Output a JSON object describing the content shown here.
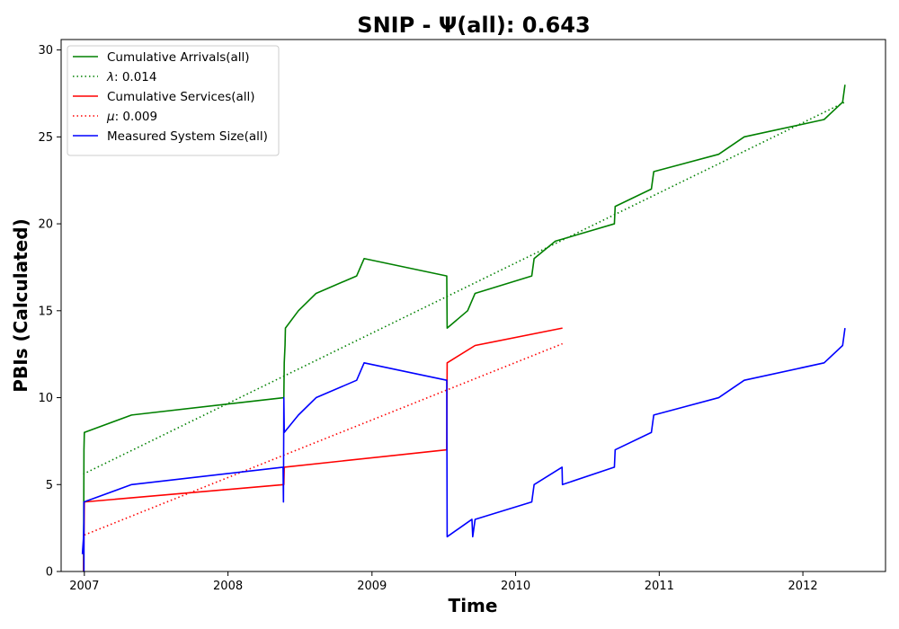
{
  "chart_data": {
    "type": "line",
    "title": "SNIP -  Ψ(all): 0.643",
    "xlabel": "Time",
    "ylabel": "PBIs (Calculated)",
    "x_is_date": true,
    "xlim": [
      "2006-11-03",
      "2012-07-29"
    ],
    "ylim": [
      0,
      30.6
    ],
    "x_ticks": [
      {
        "value": "2007-01-01",
        "label": "2007"
      },
      {
        "value": "2008-01-01",
        "label": "2008"
      },
      {
        "value": "2009-01-01",
        "label": "2009"
      },
      {
        "value": "2010-01-01",
        "label": "2010"
      },
      {
        "value": "2011-01-01",
        "label": "2011"
      },
      {
        "value": "2012-01-01",
        "label": "2012"
      }
    ],
    "y_ticks": [
      0,
      5,
      10,
      15,
      20,
      25,
      30
    ],
    "grid": false,
    "legend_position": "top-left",
    "series": [
      {
        "name": "Cumulative Arrivals(all)",
        "name_prefix": "",
        "color": "#008000",
        "style": "solid",
        "points": [
          [
            "2006-12-30",
            0
          ],
          [
            "2006-12-31",
            7
          ],
          [
            "2007-01-01",
            8
          ],
          [
            "2007-05-01",
            9
          ],
          [
            "2008-05-22",
            10
          ],
          [
            "2008-05-23",
            12
          ],
          [
            "2008-05-25",
            13
          ],
          [
            "2008-05-26",
            14
          ],
          [
            "2008-06-28",
            15
          ],
          [
            "2008-08-12",
            16
          ],
          [
            "2008-11-23",
            17
          ],
          [
            "2008-12-12",
            18
          ],
          [
            "2009-07-10",
            17
          ],
          [
            "2009-07-11",
            14
          ],
          [
            "2009-09-01",
            15
          ],
          [
            "2009-09-20",
            16
          ],
          [
            "2010-02-11",
            17
          ],
          [
            "2010-02-17",
            18
          ],
          [
            "2010-04-12",
            19
          ],
          [
            "2010-09-09",
            20
          ],
          [
            "2010-09-11",
            21
          ],
          [
            "2010-12-12",
            22
          ],
          [
            "2010-12-18",
            23
          ],
          [
            "2011-06-01",
            24
          ],
          [
            "2011-08-05",
            25
          ],
          [
            "2012-02-24",
            26
          ],
          [
            "2012-04-11",
            27
          ],
          [
            "2012-04-17",
            28
          ]
        ]
      },
      {
        "name": ": 0.014",
        "name_prefix": "λ",
        "color": "#008000",
        "style": "dotted",
        "points": [
          [
            "2006-12-29",
            5.6
          ],
          [
            "2012-04-17",
            27
          ]
        ]
      },
      {
        "name": "Cumulative Services(all)",
        "name_prefix": "",
        "color": "#ff0000",
        "style": "solid",
        "points": [
          [
            "2006-12-30",
            0
          ],
          [
            "2007-01-01",
            4
          ],
          [
            "2008-05-22",
            5
          ],
          [
            "2008-05-23",
            6
          ],
          [
            "2009-07-10",
            7
          ],
          [
            "2009-07-11",
            12
          ],
          [
            "2009-09-20",
            13
          ],
          [
            "2010-04-30",
            14
          ]
        ]
      },
      {
        "name": ": 0.009",
        "name_prefix": "μ",
        "color": "#ff0000",
        "style": "dotted",
        "points": [
          [
            "2007-01-01",
            2.1
          ],
          [
            "2010-04-30",
            13.1
          ]
        ]
      },
      {
        "name": "Measured System Size(all)",
        "name_prefix": "",
        "color": "#0000ff",
        "style": "solid",
        "points": [
          [
            "2006-12-27",
            1
          ],
          [
            "2006-12-30",
            2
          ],
          [
            "2006-12-31",
            3
          ],
          [
            "2006-12-31",
            0
          ],
          [
            "2006-12-31",
            4
          ],
          [
            "2007-05-01",
            5
          ],
          [
            "2008-05-20",
            6
          ],
          [
            "2008-05-21",
            4
          ],
          [
            "2008-05-22",
            10
          ],
          [
            "2008-05-23",
            8
          ],
          [
            "2008-06-28",
            9
          ],
          [
            "2008-08-12",
            10
          ],
          [
            "2008-11-23",
            11
          ],
          [
            "2008-12-12",
            12
          ],
          [
            "2009-07-10",
            11
          ],
          [
            "2009-07-11",
            2
          ],
          [
            "2009-09-12",
            3
          ],
          [
            "2009-09-14",
            2
          ],
          [
            "2009-09-20",
            3
          ],
          [
            "2010-02-11",
            4
          ],
          [
            "2010-02-17",
            5
          ],
          [
            "2010-04-29",
            6
          ],
          [
            "2010-04-30",
            5
          ],
          [
            "2010-09-09",
            6
          ],
          [
            "2010-09-11",
            7
          ],
          [
            "2010-12-12",
            8
          ],
          [
            "2010-12-18",
            9
          ],
          [
            "2011-06-01",
            10
          ],
          [
            "2011-08-05",
            11
          ],
          [
            "2012-02-24",
            12
          ],
          [
            "2012-04-11",
            13
          ],
          [
            "2012-04-17",
            14
          ]
        ]
      }
    ]
  }
}
